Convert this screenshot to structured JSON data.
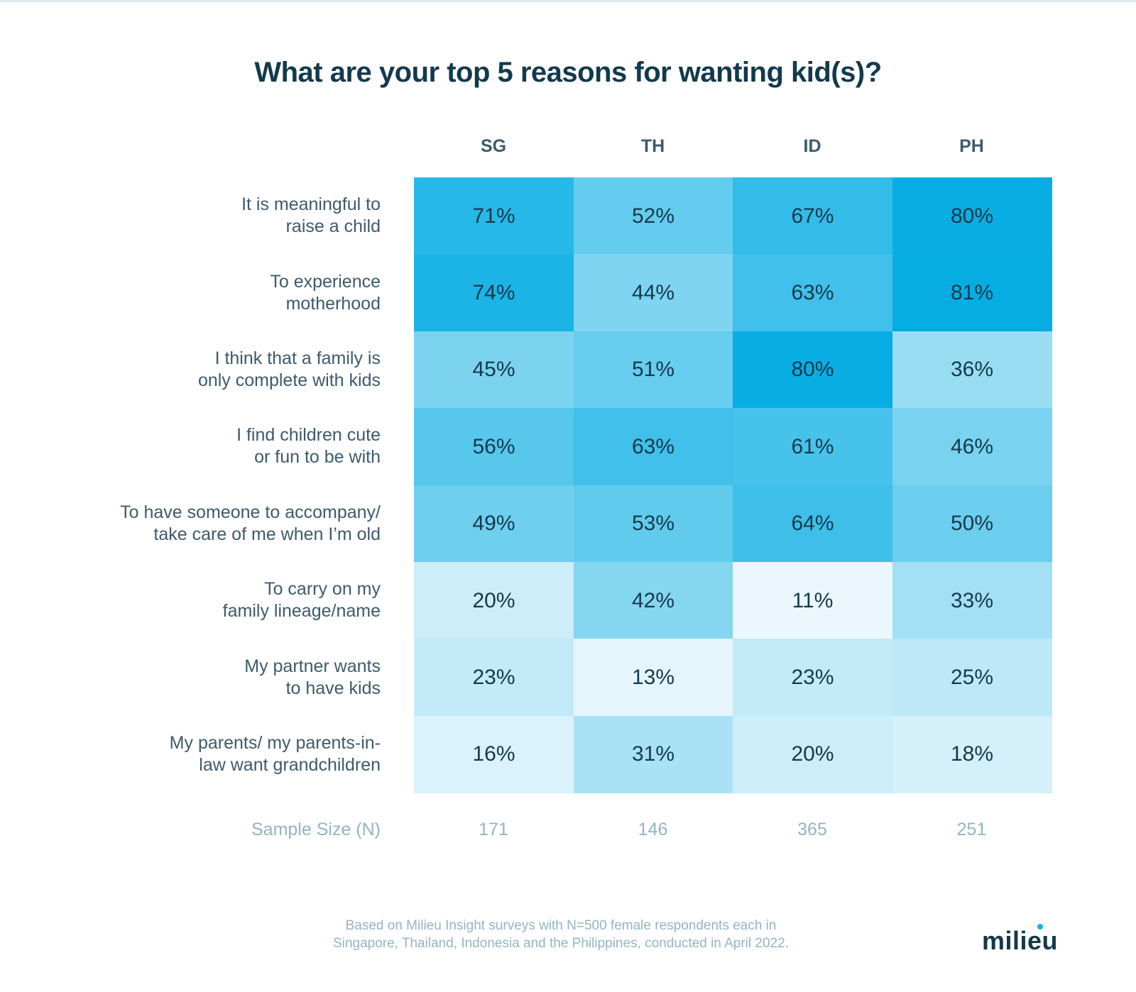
{
  "chart_data": {
    "type": "heatmap",
    "title": "What are your top 5 reasons for wanting kid(s)?",
    "columns": [
      "SG",
      "TH",
      "ID",
      "PH"
    ],
    "rows": [
      {
        "label": "It is meaningful to\nraise a child",
        "values": [
          71,
          52,
          67,
          80
        ]
      },
      {
        "label": "To experience\nmotherhood",
        "values": [
          74,
          44,
          63,
          81
        ]
      },
      {
        "label": "I think that a family is\nonly complete with kids",
        "values": [
          45,
          51,
          80,
          36
        ]
      },
      {
        "label": "I find children cute\nor fun to be with",
        "values": [
          56,
          63,
          61,
          46
        ]
      },
      {
        "label": "To have someone to accompany/\ntake care of me when I’m old",
        "values": [
          49,
          53,
          64,
          50
        ]
      },
      {
        "label": "To carry on my\nfamily lineage/name",
        "values": [
          20,
          42,
          11,
          33
        ]
      },
      {
        "label": "My partner wants\nto have kids",
        "values": [
          23,
          13,
          23,
          25
        ]
      },
      {
        "label": "My parents/ my parents-in-\nlaw want grandchildren",
        "values": [
          16,
          31,
          20,
          18
        ]
      }
    ],
    "value_suffix": "%",
    "sample_size_label": "Sample Size (N)",
    "sample_sizes": [
      171,
      146,
      365,
      251
    ],
    "color_scale": {
      "low": "#eef8fd",
      "high": "#05ade3",
      "min": 10,
      "max": 81
    }
  },
  "footnote": {
    "line1": "Based on Milieu Insight surveys with N=500 female respondents each in",
    "line2": "Singapore, Thailand, Indonesia and the Philippines, conducted in April 2022."
  },
  "logo": {
    "text": "milieu",
    "accent": "#19b0e6"
  }
}
